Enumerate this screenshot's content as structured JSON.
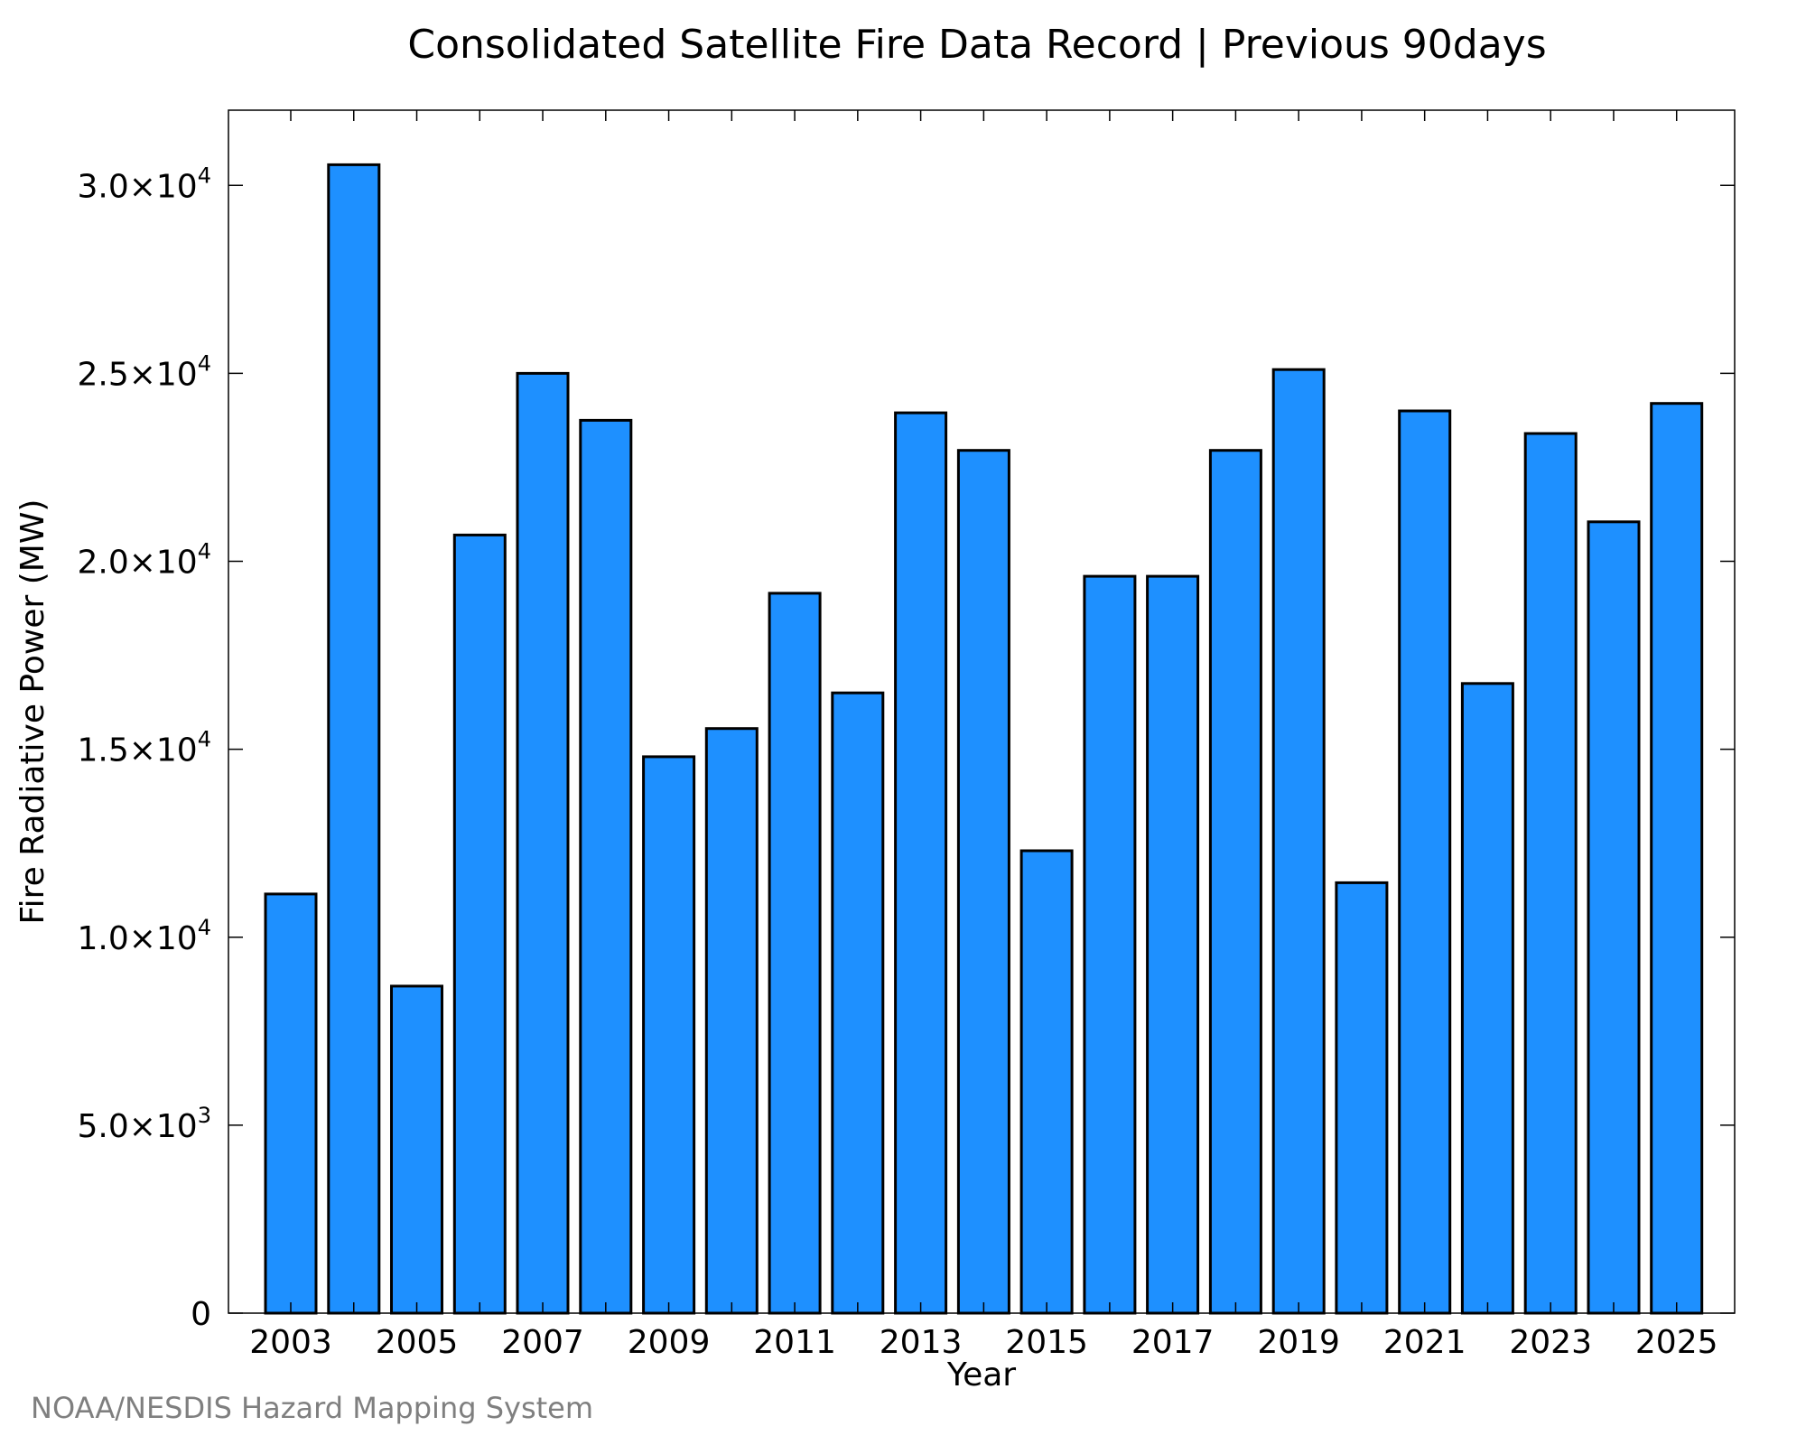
{
  "chart_data": {
    "type": "bar",
    "title": "Consolidated Satellite Fire Data Record | Previous 90days",
    "xlabel": "Year",
    "ylabel": "Fire Radiative Power (MW)",
    "categories": [
      "2003",
      "2004",
      "2005",
      "2006",
      "2007",
      "2008",
      "2009",
      "2010",
      "2011",
      "2012",
      "2013",
      "2014",
      "2015",
      "2016",
      "2017",
      "2018",
      "2019",
      "2020",
      "2021",
      "2022",
      "2023",
      "2024",
      "2025"
    ],
    "values": [
      11150,
      30550,
      8700,
      20700,
      25000,
      23750,
      14800,
      15550,
      19150,
      16500,
      23950,
      22950,
      12300,
      19600,
      19600,
      22950,
      25100,
      11450,
      24000,
      16750,
      23400,
      21050,
      24200
    ],
    "x_tick_labels": [
      "2003",
      "2005",
      "2007",
      "2009",
      "2011",
      "2013",
      "2015",
      "2017",
      "2019",
      "2021",
      "2023",
      "2025"
    ],
    "y_ticks": [
      {
        "value": 0,
        "mantissa": "0",
        "exp": ""
      },
      {
        "value": 5000,
        "mantissa": "5.0×10",
        "exp": "3"
      },
      {
        "value": 10000,
        "mantissa": "1.0×10",
        "exp": "4"
      },
      {
        "value": 15000,
        "mantissa": "1.5×10",
        "exp": "4"
      },
      {
        "value": 20000,
        "mantissa": "2.0×10",
        "exp": "4"
      },
      {
        "value": 25000,
        "mantissa": "2.5×10",
        "exp": "4"
      },
      {
        "value": 30000,
        "mantissa": "3.0×10",
        "exp": "4"
      }
    ],
    "ylim": [
      0,
      32000
    ],
    "grid": false,
    "bar_color": "#1e90ff",
    "edge_color": "#000000"
  },
  "footer": {
    "credit": "NOAA/NESDIS Hazard Mapping System",
    "credit_color": "#7f7f7f"
  }
}
